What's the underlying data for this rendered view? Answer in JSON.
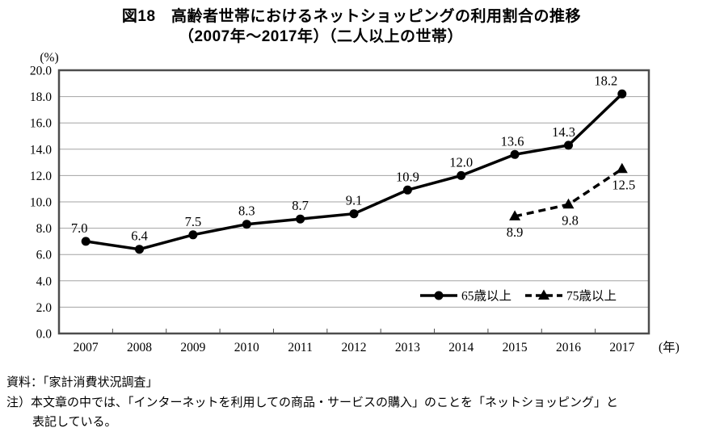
{
  "title": {
    "line1": "図18　高齢者世帯におけるネットショッピングの利用割合の推移",
    "line2": "（2007年～2017年）（二人以上の世帯）"
  },
  "chart_data": {
    "type": "line",
    "x": [
      2007,
      2008,
      2009,
      2010,
      2011,
      2012,
      2013,
      2014,
      2015,
      2016,
      2017
    ],
    "xticks": [
      "2007",
      "2008",
      "2009",
      "2010",
      "2011",
      "2012",
      "2013",
      "2014",
      "2015",
      "2016",
      "2017"
    ],
    "yticks": [
      "0.0",
      "2.0",
      "4.0",
      "6.0",
      "8.0",
      "10.0",
      "12.0",
      "14.0",
      "16.0",
      "18.0",
      "20.0"
    ],
    "ylim": [
      0,
      20
    ],
    "ytick_step": 2,
    "ylabel_unit": "(%)",
    "xlabel_unit": "(年)",
    "grid": "horizontal",
    "legend_position": "inside-bottom-right",
    "series": [
      {
        "name": "65歳以上",
        "line": "solid",
        "marker": "circle",
        "values": [
          7.0,
          6.4,
          7.5,
          8.3,
          8.7,
          9.1,
          10.9,
          12.0,
          13.6,
          14.3,
          18.2
        ],
        "labels": [
          "7.0",
          "6.4",
          "7.5",
          "8.3",
          "8.7",
          "9.1",
          "10.9",
          "12.0",
          "13.6",
          "14.3",
          "18.2"
        ],
        "label_side": "above",
        "label_dx": [
          -8,
          0,
          0,
          0,
          0,
          0,
          0,
          0,
          -3,
          -6,
          -20
        ]
      },
      {
        "name": "75歳以上",
        "line": "dashed",
        "marker": "triangle",
        "values": [
          null,
          null,
          null,
          null,
          null,
          null,
          null,
          null,
          8.9,
          9.8,
          12.5
        ],
        "labels": [
          null,
          null,
          null,
          null,
          null,
          null,
          null,
          null,
          "8.9",
          "9.8",
          "12.5"
        ],
        "label_side": "below",
        "label_dx": [
          0,
          0,
          0,
          0,
          0,
          0,
          0,
          0,
          0,
          2,
          2
        ]
      }
    ]
  },
  "footer": {
    "source": "資料：「家計消費状況調査」",
    "note_line1": "注）本文章の中では、「インターネットを利用しての商品・サービスの購入」のことを「ネットショッピング」と",
    "note_line2": "表記している。"
  },
  "colors": {
    "series": "#000000",
    "grid": "#a3a3a3",
    "border": "#4d4d4d",
    "text": "#000000"
  }
}
